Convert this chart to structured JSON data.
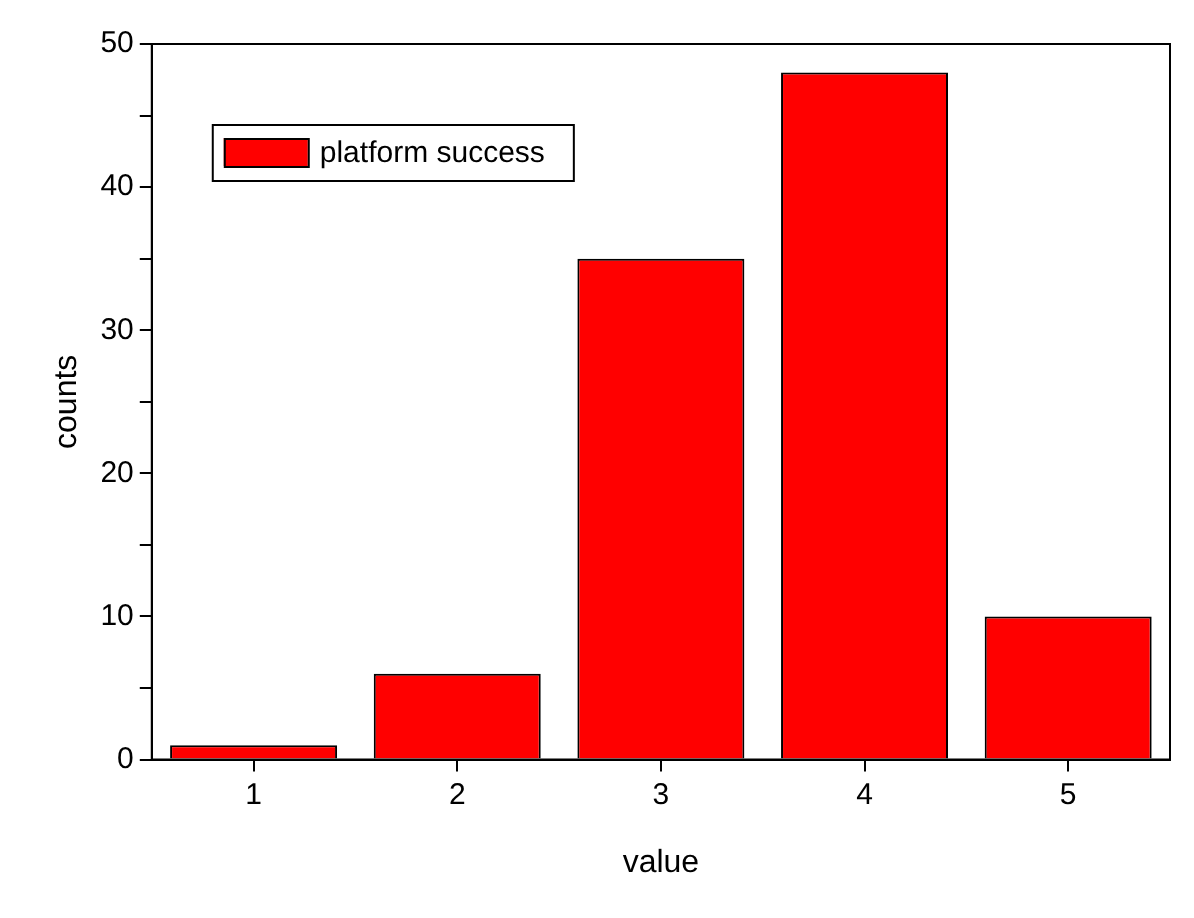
{
  "chart_data": {
    "type": "bar",
    "xlabel": "value",
    "ylabel": "counts",
    "categories": [
      "1",
      "2",
      "3",
      "4",
      "5"
    ],
    "series": [
      {
        "name": "platform success",
        "color": "#ff0000",
        "values": [
          1,
          6,
          35,
          48,
          10
        ]
      }
    ],
    "ylim": [
      0,
      50
    ],
    "yticks": [
      0,
      {
        "value": 5,
        "label": null
      },
      10,
      {
        "value": 15,
        "label": null
      },
      20,
      {
        "value": 25,
        "label": null
      },
      30,
      {
        "value": 35,
        "label": null
      },
      40,
      {
        "value": 45,
        "label": null
      },
      50
    ],
    "grid": false,
    "legend": "top left"
  }
}
